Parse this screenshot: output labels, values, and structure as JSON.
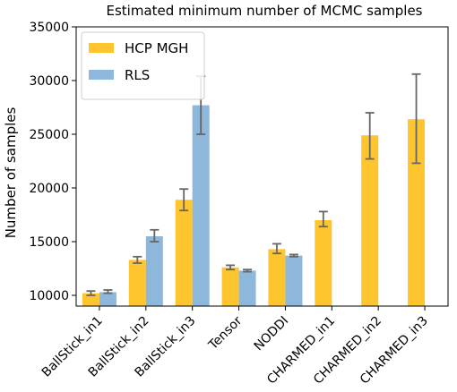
{
  "chart_data": {
    "type": "bar",
    "title": "Estimated minimum number of MCMC samples",
    "ylabel": "Number of samples",
    "xlabel": "",
    "ylim": [
      9000,
      35000
    ],
    "yticks": [
      10000,
      15000,
      20000,
      25000,
      30000,
      35000
    ],
    "categories": [
      "BallStick_in1",
      "BallStick_in2",
      "BallStick_in3",
      "Tensor",
      "NODDI",
      "CHARMED_in1",
      "CHARMED_in2",
      "CHARMED_in3"
    ],
    "series": [
      {
        "name": "HCP MGH",
        "color": "#fec52f",
        "values": [
          10200,
          13300,
          18900,
          12600,
          14300,
          17000,
          24900,
          26400
        ],
        "err_low": [
          10000,
          13000,
          17900,
          12400,
          13900,
          16400,
          22700,
          22300
        ],
        "err_high": [
          10400,
          13600,
          19900,
          12800,
          14800,
          17800,
          27000,
          30600
        ]
      },
      {
        "name": "RLS",
        "color": "#8db8dc",
        "values": [
          10300,
          15500,
          27700,
          12300,
          13700,
          null,
          null,
          null
        ],
        "err_low": [
          10200,
          15000,
          25000,
          12200,
          13600,
          null,
          null,
          null
        ],
        "err_high": [
          10500,
          16100,
          30400,
          12400,
          13800,
          null,
          null,
          null
        ]
      }
    ],
    "legend_position": "top-left",
    "grid": false
  }
}
